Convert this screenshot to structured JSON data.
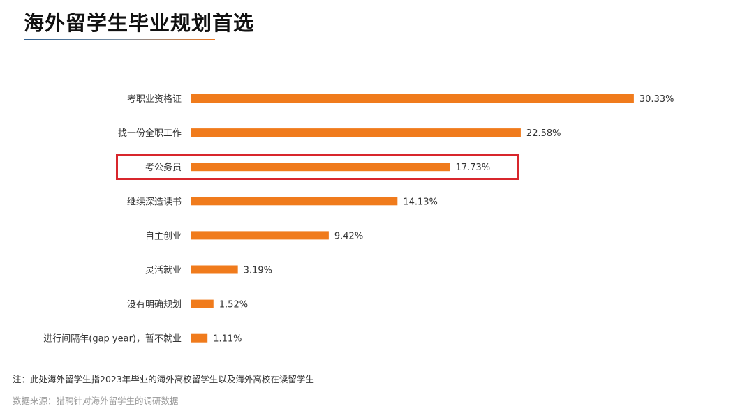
{
  "colors": {
    "bar": "#f07b1c",
    "highlight": "#d8262c"
  },
  "chart_data": {
    "type": "bar",
    "orientation": "horizontal",
    "title": "海外留学生毕业规划首选",
    "categories": [
      "考职业资格证",
      "找一份全职工作",
      "考公务员",
      "继续深造读书",
      "自主创业",
      "灵活就业",
      "没有明确规划",
      "进行间隔年(gap year)，暂不就业"
    ],
    "values": [
      30.33,
      22.58,
      17.73,
      14.13,
      9.42,
      3.19,
      1.52,
      1.11
    ],
    "value_labels": [
      "30.33%",
      "22.58%",
      "17.73%",
      "14.13%",
      "9.42%",
      "3.19%",
      "1.52%",
      "1.11%"
    ],
    "unit": "%",
    "highlighted_category": "考公务员",
    "grid": false,
    "legend": "none"
  },
  "footer": {
    "note": "注：此处海外留学生指2023年毕业的海外高校留学生以及海外高校在读留学生",
    "source": "数据来源：猎聘针对海外留学生的调研数据"
  }
}
